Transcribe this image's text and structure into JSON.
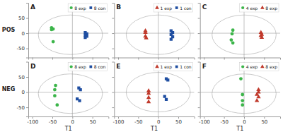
{
  "chart_data": [
    {
      "type": "scatter",
      "title": "A",
      "row_label": "POS",
      "series": [
        {
          "name": "8 exp",
          "marker": "circle",
          "color": "#3cb54a",
          "x": [
            -52,
            -48,
            -52,
            -48
          ],
          "values": [
            18,
            14,
            12,
            -28
          ]
        },
        {
          "name": "8 con",
          "marker": "square",
          "color": "#1f4ea1",
          "x": [
            32,
            36,
            32,
            36,
            32
          ],
          "values": [
            2,
            -2,
            -6,
            -10,
            -14
          ]
        }
      ],
      "ellipse": {
        "cx": -5,
        "cy": -5,
        "rx": 80,
        "ry": 65
      },
      "hline": 0,
      "vline": 0,
      "xlim": [
        -110,
        90
      ],
      "ylim": [
        -80,
        100
      ],
      "xticks": [
        -100,
        -50,
        0,
        50
      ],
      "yticks": [
        -50,
        0,
        50
      ],
      "legend": "upper right",
      "tick_labels": "y"
    },
    {
      "type": "scatter",
      "title": "B",
      "series": [
        {
          "name": "1 exp",
          "marker": "triangle",
          "color": "#c0392b",
          "x": [
            -32,
            -32,
            -32,
            -30
          ],
          "values": [
            8,
            2,
            -10,
            -16
          ]
        },
        {
          "name": "1 con",
          "marker": "square",
          "color": "#1f4ea1",
          "x": [
            32,
            36,
            32,
            36,
            32
          ],
          "values": [
            8,
            2,
            -4,
            -12,
            -20
          ]
        }
      ],
      "ellipse": {
        "cx": 0,
        "cy": -5,
        "rx": 80,
        "ry": 65
      },
      "hline": 0,
      "vline": 0,
      "xlim": [
        -110,
        90
      ],
      "ylim": [
        -80,
        100
      ],
      "xticks": [
        -100,
        -50,
        0,
        50
      ],
      "yticks": [
        -50,
        0,
        50
      ],
      "legend": "upper right",
      "tick_labels": false
    },
    {
      "type": "scatter",
      "title": "C",
      "series": [
        {
          "name": "4 exp",
          "marker": "circle",
          "color": "#3cb54a",
          "x": [
            -28,
            -30,
            -32,
            -28
          ],
          "values": [
            10,
            -2,
            -22,
            -32
          ]
        },
        {
          "name": "8 exp",
          "marker": "triangle",
          "color": "#c0392b",
          "x": [
            42,
            44,
            42,
            44
          ],
          "values": [
            2,
            -4,
            -8,
            -14
          ]
        }
      ],
      "ellipse": {
        "cx": 0,
        "cy": -5,
        "rx": 80,
        "ry": 65
      },
      "hline": 0,
      "vline": 0,
      "xlim": [
        -110,
        90
      ],
      "ylim": [
        -80,
        100
      ],
      "xticks": [
        -100,
        -50,
        0,
        50
      ],
      "yticks": [
        -50,
        0,
        50
      ],
      "legend": "upper right",
      "tick_labels": false
    },
    {
      "type": "scatter",
      "title": "D",
      "row_label": "NEG",
      "xlabel": "T1",
      "series": [
        {
          "name": "8 exp",
          "marker": "circle",
          "color": "#3cb54a",
          "x": [
            -42,
            -44,
            -44,
            -38
          ],
          "values": [
            22,
            8,
            -12,
            -42
          ]
        },
        {
          "name": "8 con",
          "marker": "square",
          "color": "#1f4ea1",
          "x": [
            16,
            20,
            12,
            18
          ],
          "values": [
            14,
            8,
            -22,
            -28
          ]
        }
      ],
      "ellipse": {
        "cx": -5,
        "cy": -5,
        "rx": 80,
        "ry": 65
      },
      "hline": 0,
      "vline": 0,
      "xlim": [
        -110,
        90
      ],
      "ylim": [
        -80,
        100
      ],
      "xticks": [
        -100,
        -50,
        0,
        50
      ],
      "yticks": [
        -50,
        0,
        50
      ],
      "legend": "upper right"
    },
    {
      "type": "scatter",
      "title": "E",
      "xlabel": "T1",
      "series": [
        {
          "name": "1 exp",
          "marker": "triangle",
          "color": "#c0392b",
          "x": [
            -24,
            -24,
            -24,
            -24
          ],
          "values": [
            4,
            -4,
            -18,
            -32
          ]
        },
        {
          "name": "1 con",
          "marker": "square",
          "color": "#1f4ea1",
          "x": [
            20,
            24,
            16,
            20
          ],
          "values": [
            44,
            40,
            -14,
            -24
          ]
        }
      ],
      "ellipse": {
        "cx": 0,
        "cy": 0,
        "rx": 80,
        "ry": 65
      },
      "hline": 0,
      "vline": 0,
      "xlim": [
        -110,
        90
      ],
      "ylim": [
        -80,
        100
      ],
      "xticks": [
        -100,
        -50,
        0,
        50
      ],
      "yticks": [
        -50,
        0,
        50
      ],
      "legend": "upper right",
      "tick_labels": "x"
    },
    {
      "type": "scatter",
      "title": "F",
      "xlabel": "T1",
      "series": [
        {
          "name": "4 exp",
          "marker": "circle",
          "color": "#3cb54a",
          "x": [
            -8,
            -4,
            -4,
            -4
          ],
          "values": [
            44,
            -8,
            -28,
            -42
          ]
        },
        {
          "name": "8 exp",
          "marker": "triangle",
          "color": "#c0392b",
          "x": [
            36,
            36,
            32,
            36,
            32
          ],
          "values": [
            8,
            0,
            -8,
            -16,
            -28
          ]
        }
      ],
      "ellipse": {
        "cx": 0,
        "cy": -5,
        "rx": 80,
        "ry": 65
      },
      "hline": 0,
      "vline": 0,
      "xlim": [
        -110,
        90
      ],
      "ylim": [
        -80,
        100
      ],
      "xticks": [
        -100,
        -50,
        0,
        50
      ],
      "yticks": [
        -50,
        0,
        50
      ],
      "legend": "upper right",
      "tick_labels": "x"
    }
  ]
}
